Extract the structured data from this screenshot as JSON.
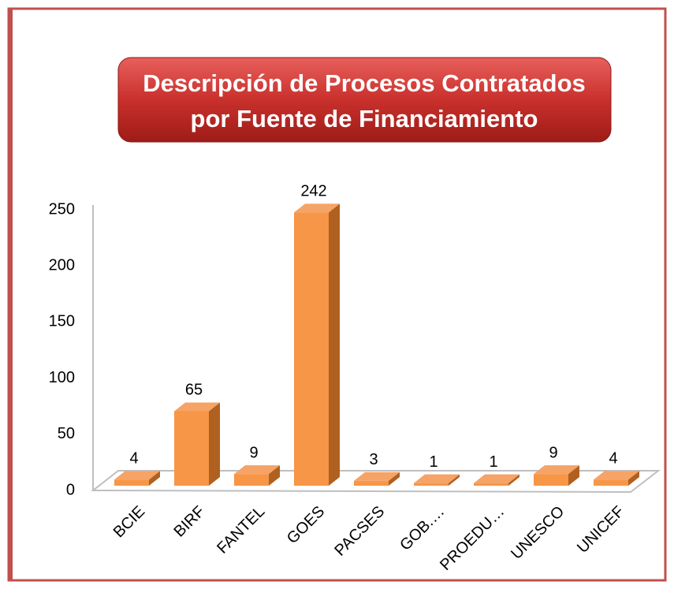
{
  "chart_data": {
    "type": "bar3d",
    "title": [
      "Descripción de Procesos Contratados",
      "por Fuente de Financiamiento"
    ],
    "categories": [
      "BCIE",
      "BIRF",
      "FANTEL",
      "GOES",
      "PACSES",
      "GOB.…",
      "PROEDU…",
      "UNESCO",
      "UNICEF"
    ],
    "values": [
      4,
      65,
      9,
      242,
      3,
      1,
      1,
      9,
      4
    ],
    "color": "#f79646",
    "ylim": [
      0,
      250
    ],
    "yticks": [
      0,
      50,
      100,
      150,
      200,
      250
    ],
    "grid": false
  }
}
